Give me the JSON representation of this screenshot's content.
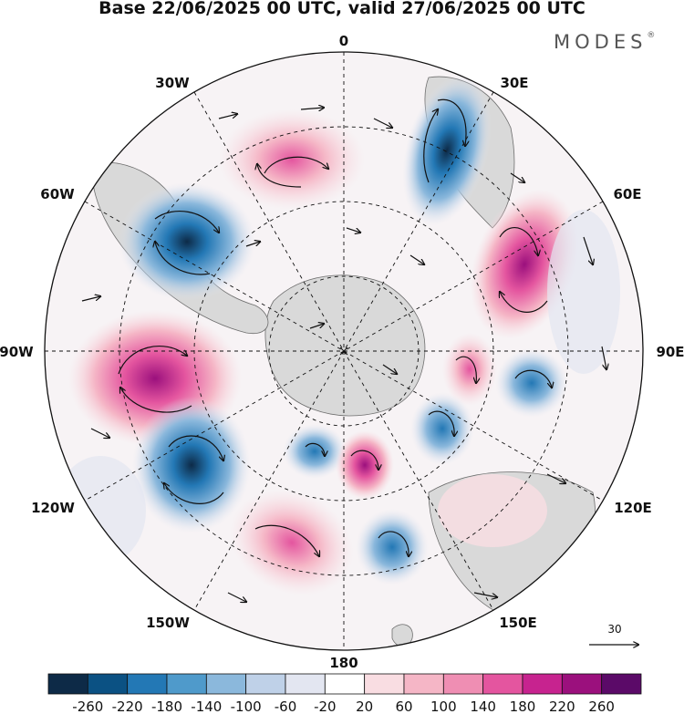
{
  "title": "Base 22/06/2025 00 UTC, valid 27/06/2025 00 UTC",
  "brand": {
    "name": "MODES",
    "mark": "®"
  },
  "longitude_labels": {
    "lon_0": "0",
    "lon_30e": "30E",
    "lon_60e": "60E",
    "lon_90e": "90E",
    "lon_120e": "120E",
    "lon_150e": "150E",
    "lon_180": "180",
    "lon_150w": "150W",
    "lon_120w": "120W",
    "lon_90w": "90W",
    "lon_60w": "60W",
    "lon_30w": "30W"
  },
  "reference_vector": {
    "value": "30"
  },
  "colorbar": {
    "ticks": [
      "-260",
      "-220",
      "-180",
      "-140",
      "-100",
      "-60",
      "-20",
      "20",
      "60",
      "100",
      "140",
      "180",
      "220",
      "260"
    ],
    "colors": [
      "#0d2a47",
      "#0b5183",
      "#2378b5",
      "#4f9acb",
      "#8bb8dc",
      "#bfd1e8",
      "#e3e6f1",
      "#ffffff",
      "#f9dde2",
      "#f5b6c6",
      "#ef8eb3",
      "#e4559f",
      "#c7238f",
      "#9b107d",
      "#5b0a68"
    ]
  },
  "colors": {
    "coast": "#6d6d6d",
    "land": "#d9d9d9",
    "grid": "#000000",
    "arrows": "#111111"
  }
}
